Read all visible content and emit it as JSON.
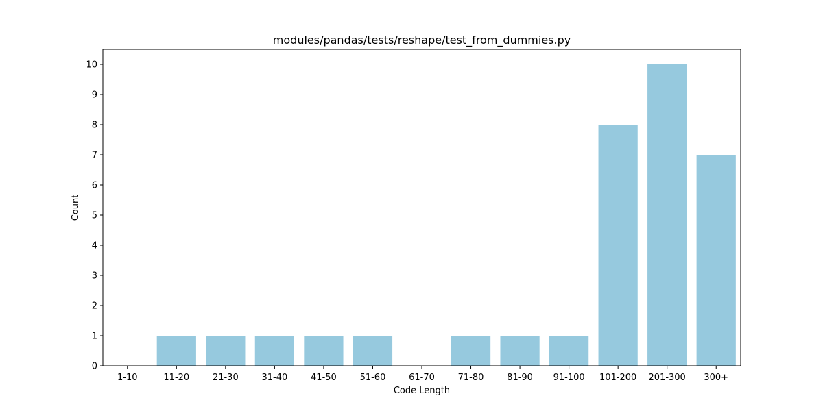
{
  "chart_data": {
    "type": "bar",
    "title": "modules/pandas/tests/reshape/test_from_dummies.py",
    "xlabel": "Code Length",
    "ylabel": "Count",
    "categories": [
      "1-10",
      "11-20",
      "21-30",
      "31-40",
      "41-50",
      "51-60",
      "61-70",
      "71-80",
      "81-90",
      "91-100",
      "101-200",
      "201-300",
      "300+"
    ],
    "values": [
      0,
      1,
      1,
      1,
      1,
      1,
      0,
      1,
      1,
      1,
      8,
      10,
      7
    ],
    "ylim": [
      0,
      10.5
    ],
    "yticks": [
      0,
      1,
      2,
      3,
      4,
      5,
      6,
      7,
      8,
      9,
      10
    ],
    "bar_color": "#96c9de",
    "grid": false
  }
}
